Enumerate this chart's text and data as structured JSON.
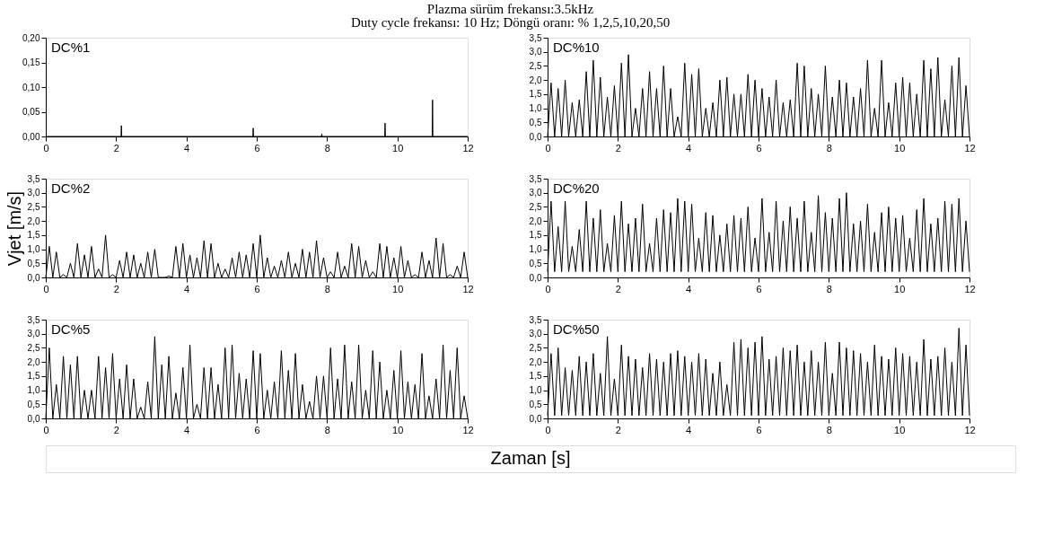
{
  "chart_data": [
    {
      "type": "line",
      "title": "Plazma sürüm frekansı:3.5kHz",
      "subtitle": "Duty cycle frekansı: 10 Hz; Döngü oranı: % 1,2,5,10,20,50",
      "xlabel": "Zaman [s]",
      "annotations": [
        "DC%1"
      ],
      "grid": false,
      "xlim": [
        0,
        12
      ],
      "xticks": [
        0,
        2,
        4,
        6,
        8,
        10,
        12
      ],
      "ylim": [
        0,
        0.2
      ],
      "yticks": [
        {
          "value": 0,
          "label": "0,00"
        },
        {
          "value": 0.05,
          "label": "0,05"
        },
        {
          "value": 0.1,
          "label": "0,10"
        },
        {
          "value": 0.15,
          "label": "0,15"
        },
        {
          "value": 0.2,
          "label": "0,20"
        }
      ],
      "x": [
        0,
        2.14,
        2.15,
        2.16,
        5.89,
        5.9,
        5.91,
        7.84,
        7.85,
        7.86,
        9.64,
        9.65,
        9.66,
        10.99,
        11.0,
        11.01,
        12
      ],
      "series": [
        {
          "color": "#000000",
          "values": [
            0,
            0,
            0.022,
            0,
            0,
            0.017,
            0,
            0,
            0.005,
            0,
            0,
            0.027,
            0,
            0,
            0.074,
            0,
            0
          ]
        }
      ]
    },
    {
      "type": "line",
      "annotations": [
        "DC%10"
      ],
      "grid": false,
      "xlim": [
        0,
        12
      ],
      "xticks": [
        0,
        2,
        4,
        6,
        8,
        10,
        12
      ],
      "ylim": [
        0,
        3.5
      ],
      "yticks": [
        {
          "value": 0,
          "label": "0,0"
        },
        {
          "value": 0.5,
          "label": "0,5"
        },
        {
          "value": 1,
          "label": "1,0"
        },
        {
          "value": 1.5,
          "label": "1,5"
        },
        {
          "value": 2,
          "label": "2,0"
        },
        {
          "value": 2.5,
          "label": "2,5"
        },
        {
          "value": 3,
          "label": "3,0"
        },
        {
          "value": 3.5,
          "label": "3,5"
        }
      ],
      "x": [
        0,
        0.1,
        0.2,
        0.3,
        0.4,
        0.5,
        0.6,
        0.7,
        0.8,
        0.9,
        1.0,
        1.1,
        1.2,
        1.3,
        1.4,
        1.5,
        1.6,
        1.7,
        1.8,
        1.9,
        2.0,
        2.1,
        2.2,
        2.3,
        2.4,
        2.5,
        2.6,
        2.7,
        2.8,
        2.9,
        3.0,
        3.1,
        3.2,
        3.3,
        3.4,
        3.5,
        3.6,
        3.7,
        3.8,
        3.9,
        4.0,
        4.1,
        4.2,
        4.3,
        4.4,
        4.5,
        4.6,
        4.7,
        4.8,
        4.9,
        5.0,
        5.1,
        5.2,
        5.3,
        5.4,
        5.5,
        5.6,
        5.7,
        5.8,
        5.9,
        6.0,
        6.1,
        6.2,
        6.3,
        6.4,
        6.5,
        6.6,
        6.7,
        6.8,
        6.9,
        7.0,
        7.1,
        7.2,
        7.3,
        7.4,
        7.5,
        7.6,
        7.7,
        7.8,
        7.9,
        8.0,
        8.1,
        8.2,
        8.3,
        8.4,
        8.5,
        8.6,
        8.7,
        8.8,
        8.9,
        9.0,
        9.1,
        9.2,
        9.3,
        9.4,
        9.5,
        9.6,
        9.7,
        9.8,
        9.9,
        10.0,
        10.1,
        10.2,
        10.3,
        10.4,
        10.5,
        10.6,
        10.7,
        10.8,
        10.9,
        11.0,
        11.1,
        11.2,
        11.3,
        11.4,
        11.5,
        11.6,
        11.7,
        11.8,
        11.9,
        12.0
      ],
      "series": [
        {
          "color": "#000000",
          "values": [
            0,
            1.9,
            0,
            1.7,
            0,
            2.0,
            0,
            1.2,
            0,
            1.3,
            0,
            2.3,
            0,
            2.7,
            0,
            2.1,
            0,
            1.4,
            0,
            1.8,
            0,
            2.6,
            0,
            2.9,
            0,
            1.0,
            0,
            1.7,
            0,
            2.3,
            0,
            1.7,
            0,
            2.5,
            0,
            1.7,
            0,
            0.7,
            0,
            2.6,
            0,
            2.2,
            0,
            2.4,
            0,
            1.0,
            0,
            1.2,
            0,
            2.0,
            0,
            2.1,
            0,
            1.5,
            0,
            1.5,
            0,
            2.2,
            0,
            2.0,
            0,
            1.7,
            0,
            1.4,
            0,
            2.0,
            0,
            1.2,
            0,
            1.3,
            0,
            2.6,
            0,
            2.5,
            0,
            1.7,
            0,
            1.5,
            0,
            2.5,
            0,
            1.4,
            0,
            2.0,
            0,
            1.9,
            0,
            1.4,
            0,
            1.7,
            0,
            2.7,
            0,
            1.0,
            0,
            2.7,
            0,
            1.2,
            0,
            1.9,
            0,
            2.1,
            0,
            1.9,
            0,
            1.5,
            0,
            2.7,
            0,
            2.4,
            0,
            2.8,
            0,
            1.3,
            0,
            2.5,
            0,
            2.8,
            0,
            1.8,
            0
          ]
        }
      ]
    },
    {
      "type": "line",
      "ylabel": "Vjet [m/s]",
      "annotations": [
        "DC%2"
      ],
      "grid": false,
      "xlim": [
        0,
        12
      ],
      "xticks": [
        0,
        2,
        4,
        6,
        8,
        10,
        12
      ],
      "ylim": [
        0,
        3.5
      ],
      "yticks": [
        {
          "value": 0,
          "label": "0,0"
        },
        {
          "value": 0.5,
          "label": "0,5"
        },
        {
          "value": 1,
          "label": "1,0"
        },
        {
          "value": 1.5,
          "label": "1,5"
        },
        {
          "value": 2,
          "label": "2,0"
        },
        {
          "value": 2.5,
          "label": "2,5"
        },
        {
          "value": 3,
          "label": "3,0"
        },
        {
          "value": 3.5,
          "label": "3,5"
        }
      ],
      "x": [
        0,
        0.1,
        0.2,
        0.3,
        0.4,
        0.5,
        0.6,
        0.7,
        0.8,
        0.9,
        1.0,
        1.1,
        1.2,
        1.3,
        1.4,
        1.5,
        1.6,
        1.7,
        1.8,
        1.9,
        2.0,
        2.1,
        2.2,
        2.3,
        2.4,
        2.5,
        2.6,
        2.7,
        2.8,
        2.9,
        3.0,
        3.1,
        3.2,
        3.3,
        3.4,
        3.5,
        3.6,
        3.7,
        3.8,
        3.9,
        4.0,
        4.1,
        4.2,
        4.3,
        4.4,
        4.5,
        4.6,
        4.7,
        4.8,
        4.9,
        5.0,
        5.1,
        5.2,
        5.3,
        5.4,
        5.5,
        5.6,
        5.7,
        5.8,
        5.9,
        6.0,
        6.1,
        6.2,
        6.3,
        6.4,
        6.5,
        6.6,
        6.7,
        6.8,
        6.9,
        7.0,
        7.1,
        7.2,
        7.3,
        7.4,
        7.5,
        7.6,
        7.7,
        7.8,
        7.9,
        8.0,
        8.1,
        8.2,
        8.3,
        8.4,
        8.5,
        8.6,
        8.7,
        8.8,
        8.9,
        9.0,
        9.1,
        9.2,
        9.3,
        9.4,
        9.5,
        9.6,
        9.7,
        9.8,
        9.9,
        10.0,
        10.1,
        10.2,
        10.3,
        10.4,
        10.5,
        10.6,
        10.7,
        10.8,
        10.9,
        11.0,
        11.1,
        11.2,
        11.3,
        11.4,
        11.5,
        11.6,
        11.7,
        11.8,
        11.9,
        12.0
      ],
      "series": [
        {
          "color": "#000000",
          "values": [
            0,
            1.1,
            0,
            0.9,
            0,
            0.1,
            0,
            0.5,
            0,
            1.2,
            0,
            0.8,
            0,
            1.1,
            0,
            0.3,
            0,
            1.5,
            0,
            0.1,
            0,
            0.6,
            0,
            0.9,
            0,
            0.8,
            0,
            0.5,
            0,
            0.9,
            0,
            1.0,
            0,
            0.0,
            0,
            0.05,
            0,
            1.1,
            0,
            1.2,
            0,
            0.8,
            0,
            0.7,
            0,
            1.3,
            0,
            1.2,
            0,
            0.5,
            0,
            0.3,
            0,
            0.7,
            0,
            0.9,
            0,
            0.8,
            0,
            1.2,
            0,
            1.5,
            0,
            0.7,
            0,
            0.4,
            0,
            0.6,
            0,
            0.9,
            0,
            0.5,
            0,
            1.0,
            0,
            0.9,
            0,
            1.3,
            0,
            0.7,
            0,
            0.2,
            0,
            0.9,
            0,
            0.4,
            0,
            1.2,
            0,
            1.1,
            0,
            0.6,
            0,
            0.2,
            0,
            1.2,
            0,
            1.1,
            0,
            0.7,
            0,
            1.1,
            0,
            0.6,
            0,
            0.1,
            0,
            0.9,
            0,
            0.6,
            0,
            1.4,
            0,
            1.2,
            0,
            0.1,
            0,
            0.4,
            0,
            0.9,
            0
          ]
        }
      ]
    },
    {
      "type": "line",
      "annotations": [
        "DC%20"
      ],
      "grid": false,
      "xlim": [
        0,
        12
      ],
      "xticks": [
        0,
        2,
        4,
        6,
        8,
        10,
        12
      ],
      "ylim": [
        0,
        3.5
      ],
      "yticks": [
        {
          "value": 0,
          "label": "0,0"
        },
        {
          "value": 0.5,
          "label": "0,5"
        },
        {
          "value": 1,
          "label": "1,0"
        },
        {
          "value": 1.5,
          "label": "1,5"
        },
        {
          "value": 2,
          "label": "2,0"
        },
        {
          "value": 2.5,
          "label": "2,5"
        },
        {
          "value": 3,
          "label": "3,0"
        },
        {
          "value": 3.5,
          "label": "3,5"
        }
      ],
      "x": [
        0,
        0.1,
        0.2,
        0.3,
        0.4,
        0.5,
        0.6,
        0.7,
        0.8,
        0.9,
        1.0,
        1.1,
        1.2,
        1.3,
        1.4,
        1.5,
        1.6,
        1.7,
        1.8,
        1.9,
        2.0,
        2.1,
        2.2,
        2.3,
        2.4,
        2.5,
        2.6,
        2.7,
        2.8,
        2.9,
        3.0,
        3.1,
        3.2,
        3.3,
        3.4,
        3.5,
        3.6,
        3.7,
        3.8,
        3.9,
        4.0,
        4.1,
        4.2,
        4.3,
        4.4,
        4.5,
        4.6,
        4.7,
        4.8,
        4.9,
        5.0,
        5.1,
        5.2,
        5.3,
        5.4,
        5.5,
        5.6,
        5.7,
        5.8,
        5.9,
        6.0,
        6.1,
        6.2,
        6.3,
        6.4,
        6.5,
        6.6,
        6.7,
        6.8,
        6.9,
        7.0,
        7.1,
        7.2,
        7.3,
        7.4,
        7.5,
        7.6,
        7.7,
        7.8,
        7.9,
        8.0,
        8.1,
        8.2,
        8.3,
        8.4,
        8.5,
        8.6,
        8.7,
        8.8,
        8.9,
        9.0,
        9.1,
        9.2,
        9.3,
        9.4,
        9.5,
        9.6,
        9.7,
        9.8,
        9.9,
        10.0,
        10.1,
        10.2,
        10.3,
        10.4,
        10.5,
        10.6,
        10.7,
        10.8,
        10.9,
        11.0,
        11.1,
        11.2,
        11.3,
        11.4,
        11.5,
        11.6,
        11.7,
        11.8,
        11.9,
        12.0
      ],
      "series": [
        {
          "color": "#000000",
          "values": [
            0.2,
            2.7,
            0.2,
            1.8,
            0.2,
            2.7,
            0.2,
            1.1,
            0.2,
            1.7,
            0.2,
            2.7,
            0.2,
            2.1,
            0.2,
            2.4,
            0.2,
            1.2,
            0.2,
            2.2,
            0.2,
            2.7,
            0.2,
            1.9,
            0.2,
            2.1,
            0.2,
            2.6,
            0.2,
            1.2,
            0.2,
            2.1,
            0.2,
            2.4,
            0.2,
            2.3,
            0.2,
            2.8,
            0.2,
            2.7,
            0.2,
            2.6,
            0.2,
            1.4,
            0.2,
            2.3,
            0.2,
            2.2,
            0.2,
            1.5,
            0.2,
            1.9,
            0.2,
            2.2,
            0.2,
            2.1,
            0.2,
            2.5,
            0.2,
            1.4,
            0.2,
            2.8,
            0.2,
            1.6,
            0.2,
            2.7,
            0.2,
            2.0,
            0.2,
            2.5,
            0.2,
            2.1,
            0.2,
            2.7,
            0.2,
            1.6,
            0.2,
            2.9,
            0.2,
            2.3,
            0.2,
            2.1,
            0.2,
            2.8,
            0.2,
            3.0,
            0.2,
            1.9,
            0.2,
            2.0,
            0.2,
            2.6,
            0.2,
            1.6,
            0.2,
            2.3,
            0.2,
            2.5,
            0.2,
            2.1,
            0.2,
            2.2,
            0.2,
            1.4,
            0.2,
            2.4,
            0.2,
            2.8,
            0.2,
            1.9,
            0.2,
            2.1,
            0.2,
            2.7,
            0.2,
            2.6,
            0.2,
            2.8,
            0.2,
            2.0,
            0.2
          ]
        }
      ]
    },
    {
      "type": "line",
      "annotations": [
        "DC%5"
      ],
      "grid": false,
      "xlim": [
        0,
        12
      ],
      "xticks": [
        0,
        2,
        4,
        6,
        8,
        10,
        12
      ],
      "ylim": [
        0,
        3.5
      ],
      "yticks": [
        {
          "value": 0,
          "label": "0,0"
        },
        {
          "value": 0.5,
          "label": "0,5"
        },
        {
          "value": 1,
          "label": "1,0"
        },
        {
          "value": 1.5,
          "label": "1,5"
        },
        {
          "value": 2,
          "label": "2,0"
        },
        {
          "value": 2.5,
          "label": "2,5"
        },
        {
          "value": 3,
          "label": "3,0"
        },
        {
          "value": 3.5,
          "label": "3,5"
        }
      ],
      "x": [
        0,
        0.1,
        0.2,
        0.3,
        0.4,
        0.5,
        0.6,
        0.7,
        0.8,
        0.9,
        1.0,
        1.1,
        1.2,
        1.3,
        1.4,
        1.5,
        1.6,
        1.7,
        1.8,
        1.9,
        2.0,
        2.1,
        2.2,
        2.3,
        2.4,
        2.5,
        2.6,
        2.7,
        2.8,
        2.9,
        3.0,
        3.1,
        3.2,
        3.3,
        3.4,
        3.5,
        3.6,
        3.7,
        3.8,
        3.9,
        4.0,
        4.1,
        4.2,
        4.3,
        4.4,
        4.5,
        4.6,
        4.7,
        4.8,
        4.9,
        5.0,
        5.1,
        5.2,
        5.3,
        5.4,
        5.5,
        5.6,
        5.7,
        5.8,
        5.9,
        6.0,
        6.1,
        6.2,
        6.3,
        6.4,
        6.5,
        6.6,
        6.7,
        6.8,
        6.9,
        7.0,
        7.1,
        7.2,
        7.3,
        7.4,
        7.5,
        7.6,
        7.7,
        7.8,
        7.9,
        8.0,
        8.1,
        8.2,
        8.3,
        8.4,
        8.5,
        8.6,
        8.7,
        8.8,
        8.9,
        9.0,
        9.1,
        9.2,
        9.3,
        9.4,
        9.5,
        9.6,
        9.7,
        9.8,
        9.9,
        10.0,
        10.1,
        10.2,
        10.3,
        10.4,
        10.5,
        10.6,
        10.7,
        10.8,
        10.9,
        11.0,
        11.1,
        11.2,
        11.3,
        11.4,
        11.5,
        11.6,
        11.7,
        11.8,
        11.9,
        12.0
      ],
      "series": [
        {
          "color": "#000000",
          "values": [
            0,
            2.5,
            0,
            1.2,
            0,
            2.2,
            0,
            1.9,
            0,
            2.2,
            0,
            1.0,
            0,
            1.0,
            0,
            2.2,
            0,
            1.8,
            0,
            2.3,
            0,
            1.4,
            0,
            1.9,
            0,
            1.4,
            0,
            0.4,
            0,
            1.3,
            0,
            2.9,
            0,
            1.9,
            0,
            2.2,
            0,
            0.9,
            0,
            1.8,
            0,
            2.6,
            0,
            0.5,
            0,
            1.8,
            0,
            1.8,
            0,
            1.2,
            0,
            2.5,
            0,
            2.6,
            0,
            1.6,
            0,
            1.4,
            0,
            2.4,
            0,
            2.3,
            0,
            1.0,
            0,
            1.3,
            0,
            2.4,
            0,
            1.7,
            0,
            2.3,
            0,
            1.2,
            0,
            0.6,
            0,
            1.5,
            0,
            1.5,
            0,
            2.5,
            0,
            1.4,
            0,
            2.6,
            0,
            1.3,
            0,
            2.6,
            0,
            1.0,
            0,
            2.4,
            0,
            2.0,
            0,
            1.0,
            0,
            1.7,
            0,
            2.4,
            0,
            1.3,
            0,
            1.2,
            0,
            2.3,
            0,
            0.8,
            0,
            1.4,
            0,
            2.6,
            0,
            1.7,
            0,
            2.5,
            0,
            0.8,
            0
          ]
        }
      ]
    },
    {
      "type": "line",
      "annotations": [
        "DC%50"
      ],
      "grid": false,
      "xlim": [
        0,
        12
      ],
      "xticks": [
        0,
        2,
        4,
        6,
        8,
        10,
        12
      ],
      "ylim": [
        0,
        3.5
      ],
      "yticks": [
        {
          "value": 0,
          "label": "0,0"
        },
        {
          "value": 0.5,
          "label": "0,5"
        },
        {
          "value": 1,
          "label": "1,0"
        },
        {
          "value": 1.5,
          "label": "1,5"
        },
        {
          "value": 2,
          "label": "2,0"
        },
        {
          "value": 2.5,
          "label": "2,5"
        },
        {
          "value": 3,
          "label": "3,0"
        },
        {
          "value": 3.5,
          "label": "3,5"
        }
      ],
      "x": [
        0,
        0.1,
        0.2,
        0.3,
        0.4,
        0.5,
        0.6,
        0.7,
        0.8,
        0.9,
        1.0,
        1.1,
        1.2,
        1.3,
        1.4,
        1.5,
        1.6,
        1.7,
        1.8,
        1.9,
        2.0,
        2.1,
        2.2,
        2.3,
        2.4,
        2.5,
        2.6,
        2.7,
        2.8,
        2.9,
        3.0,
        3.1,
        3.2,
        3.3,
        3.4,
        3.5,
        3.6,
        3.7,
        3.8,
        3.9,
        4.0,
        4.1,
        4.2,
        4.3,
        4.4,
        4.5,
        4.6,
        4.7,
        4.8,
        4.9,
        5.0,
        5.1,
        5.2,
        5.3,
        5.4,
        5.5,
        5.6,
        5.7,
        5.8,
        5.9,
        6.0,
        6.1,
        6.2,
        6.3,
        6.4,
        6.5,
        6.6,
        6.7,
        6.8,
        6.9,
        7.0,
        7.1,
        7.2,
        7.3,
        7.4,
        7.5,
        7.6,
        7.7,
        7.8,
        7.9,
        8.0,
        8.1,
        8.2,
        8.3,
        8.4,
        8.5,
        8.6,
        8.7,
        8.8,
        8.9,
        9.0,
        9.1,
        9.2,
        9.3,
        9.4,
        9.5,
        9.6,
        9.7,
        9.8,
        9.9,
        10.0,
        10.1,
        10.2,
        10.3,
        10.4,
        10.5,
        10.6,
        10.7,
        10.8,
        10.9,
        11.0,
        11.1,
        11.2,
        11.3,
        11.4,
        11.5,
        11.6,
        11.7,
        11.8,
        11.9,
        12.0
      ],
      "series": [
        {
          "color": "#000000",
          "values": [
            0.1,
            2.3,
            0.1,
            2.5,
            0.1,
            1.8,
            0.1,
            1.7,
            0.1,
            2.2,
            0.1,
            2.0,
            0.1,
            2.3,
            0.1,
            1.6,
            0.1,
            2.9,
            0.1,
            1.4,
            0.1,
            2.6,
            0.1,
            2.2,
            0.1,
            2.1,
            0.1,
            1.8,
            0.1,
            2.3,
            0.1,
            2.1,
            0.1,
            2.0,
            0.1,
            2.3,
            0.1,
            2.4,
            0.1,
            2.2,
            0.1,
            2.0,
            0.1,
            2.3,
            0.1,
            2.1,
            0.1,
            1.6,
            0.1,
            2.0,
            0.1,
            1.2,
            0.1,
            2.7,
            0.1,
            2.8,
            0.1,
            2.5,
            0.1,
            2.7,
            0.1,
            2.9,
            0.1,
            2.1,
            0.1,
            2.2,
            0.1,
            2.5,
            0.1,
            2.4,
            0.1,
            2.6,
            0.1,
            2.0,
            0.1,
            2.4,
            0.1,
            2.0,
            0.1,
            2.7,
            0.1,
            1.6,
            0.1,
            2.7,
            0.1,
            2.5,
            0.1,
            2.4,
            0.1,
            2.3,
            0.1,
            2.0,
            0.1,
            2.6,
            0.1,
            2.2,
            0.1,
            2.1,
            0.1,
            2.5,
            0.1,
            2.3,
            0.1,
            2.2,
            0.1,
            2.0,
            0.1,
            2.8,
            0.1,
            2.1,
            0.1,
            2.2,
            0.1,
            2.5,
            0.1,
            2.0,
            0.1,
            3.2,
            0.1,
            2.6,
            0.1
          ]
        }
      ]
    }
  ]
}
